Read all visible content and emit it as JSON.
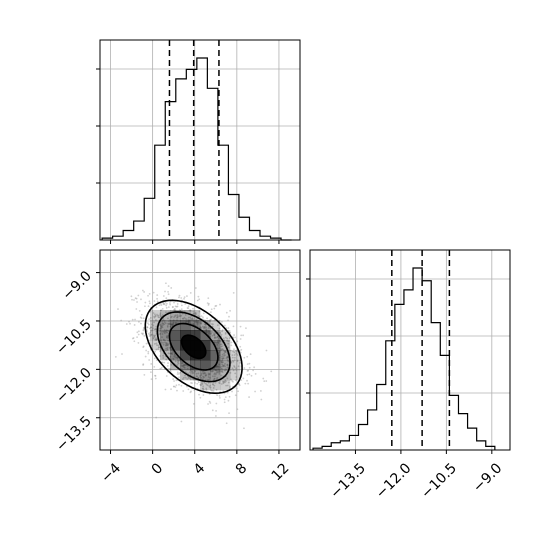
{
  "chart_data": {
    "type": "corner",
    "title": "",
    "parameters": [
      "",
      ""
    ],
    "colors": {
      "line": "#000000",
      "grid": "#b0b0b0",
      "density": "#000000",
      "points": "#9a9a9a"
    },
    "grid": true,
    "quantile_line_style": "dashed",
    "panels": [
      {
        "id": "hist-param-1",
        "type": "histogram",
        "xlim": [
          -5,
          14
        ],
        "bin_edges": [
          -4.8,
          -3.8,
          -2.8,
          -1.8,
          -0.8,
          0.2,
          1.2,
          2.2,
          3.2,
          4.2,
          5.2,
          6.2,
          7.2,
          8.2,
          9.2,
          10.2,
          11.2,
          12.2,
          13.2
        ],
        "counts": [
          0.01,
          0.02,
          0.05,
          0.1,
          0.22,
          0.5,
          0.73,
          0.85,
          0.9,
          0.96,
          0.8,
          0.5,
          0.24,
          0.12,
          0.05,
          0.02,
          0.01,
          0.0
        ],
        "quantiles": [
          1.6,
          3.9,
          6.3
        ],
        "xticks": [
          -4,
          0,
          4,
          8,
          12
        ],
        "show_tick_labels": false
      },
      {
        "id": "scatter-2d",
        "type": "density",
        "xlim": [
          -5,
          14
        ],
        "ylim": [
          -14.5,
          -8.3
        ],
        "center": [
          3.9,
          -11.3
        ],
        "std": [
          2.3,
          0.72
        ],
        "correlation": -0.45,
        "contour_sigma_levels": [
          0.5,
          1.0,
          1.5,
          2.0
        ],
        "xticks": [
          -4,
          0,
          4,
          8,
          12
        ],
        "xtick_labels": [
          "−4",
          "0",
          "4",
          "8",
          "12"
        ],
        "yticks": [
          -9.0,
          -10.5,
          -12.0,
          -13.5
        ],
        "ytick_labels": [
          "−9.0",
          "−10.5",
          "−12.0",
          "−13.5"
        ]
      },
      {
        "id": "hist-param-2",
        "type": "histogram",
        "xlim": [
          -15,
          -8.4
        ],
        "bin_edges": [
          -14.9,
          -14.6,
          -14.3,
          -14.0,
          -13.7,
          -13.4,
          -13.1,
          -12.8,
          -12.5,
          -12.2,
          -11.9,
          -11.6,
          -11.3,
          -11.0,
          -10.7,
          -10.4,
          -10.1,
          -9.8,
          -9.5,
          -9.2,
          -8.9
        ],
        "counts": [
          0.01,
          0.02,
          0.04,
          0.05,
          0.08,
          0.14,
          0.22,
          0.36,
          0.6,
          0.8,
          0.88,
          1.0,
          0.93,
          0.7,
          0.52,
          0.3,
          0.2,
          0.12,
          0.05,
          0.02
        ],
        "quantiles": [
          -12.3,
          -11.3,
          -10.4
        ],
        "xticks": [
          -13.5,
          -12.0,
          -10.5,
          -9.0
        ],
        "xtick_labels": [
          "−13.5",
          "−12.0",
          "−10.5",
          "−9.0"
        ]
      }
    ]
  }
}
